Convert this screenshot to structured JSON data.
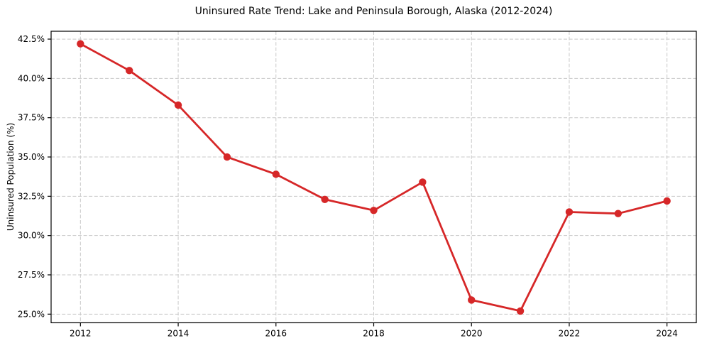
{
  "chart_data": {
    "type": "line",
    "title": "Uninsured Rate Trend: Lake and Peninsula Borough, Alaska (2012-2024)",
    "xlabel": "",
    "ylabel": "Uninsured Population (%)",
    "x": [
      2012,
      2013,
      2014,
      2015,
      2016,
      2017,
      2018,
      2019,
      2020,
      2021,
      2022,
      2023,
      2024
    ],
    "series": [
      {
        "name": "Uninsured rate",
        "values": [
          42.2,
          40.5,
          38.3,
          35.0,
          33.9,
          32.3,
          31.6,
          33.4,
          25.9,
          25.2,
          31.5,
          31.4,
          32.2
        ]
      }
    ],
    "xlim": [
      2011.4,
      2024.6
    ],
    "ylim": [
      24.45,
      43.0
    ],
    "xticks": {
      "values": [
        2012,
        2014,
        2016,
        2018,
        2020,
        2022,
        2024
      ],
      "labels": [
        "2012",
        "2014",
        "2016",
        "2018",
        "2020",
        "2022",
        "2024"
      ]
    },
    "yticks": {
      "values": [
        25.0,
        27.5,
        30.0,
        32.5,
        35.0,
        37.5,
        40.0,
        42.5
      ],
      "labels": [
        "25.0%",
        "27.5%",
        "30.0%",
        "32.5%",
        "35.0%",
        "37.5%",
        "40.0%",
        "42.5%"
      ]
    },
    "grid": true,
    "grid_style": "dashed",
    "legend": "none",
    "marker": "circle",
    "colors": {
      "line": "#d62728",
      "marker": "#d62728",
      "grid": "#c8c8c8",
      "spine": "#000000",
      "text": "#000000",
      "background": "#ffffff"
    }
  }
}
